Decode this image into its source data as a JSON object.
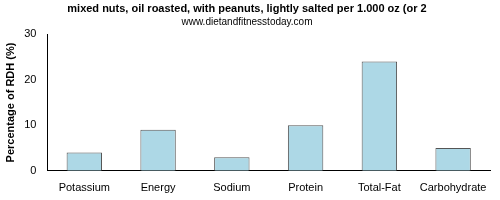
{
  "chart_data": {
    "type": "bar",
    "title": "mixed nuts, oil roasted, with peanuts, lightly salted per 1.000 oz (or 2",
    "subtitle": "www.dietandfitnesstoday.com",
    "y_label": "Percentage of RDH (%)",
    "categories": [
      "Potassium",
      "Energy",
      "Sodium",
      "Protein",
      "Total-Fat",
      "Carbohydrate"
    ],
    "values": [
      4,
      9,
      3,
      10,
      24,
      5
    ],
    "color": "#add8e6",
    "ylim": [
      0,
      30
    ],
    "yticks": [
      0,
      10,
      20,
      30
    ],
    "grid": false
  }
}
